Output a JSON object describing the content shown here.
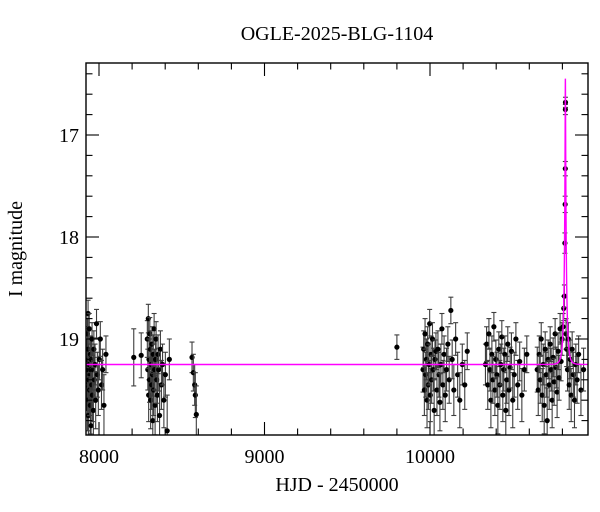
{
  "chart_data": {
    "type": "scatter",
    "title": "OGLE-2025-BLG-1104",
    "xlabel": "HJD - 2450000",
    "ylabel": "I magnitude",
    "xlim": [
      7921.5,
      10954.5
    ],
    "ylim": [
      19.94,
      16.29
    ],
    "y_axis_inverted": true,
    "xticks_major": [
      8000,
      9000,
      10000
    ],
    "xtick_minor_step": 200,
    "yticks_major": [
      17,
      18,
      19
    ],
    "ytick_minor_step": 0.2,
    "grid": false,
    "legend": null,
    "colors": {
      "model_line": "#ff00ff",
      "point": "#000000",
      "errorbar": "#3d3d3d",
      "axis": "#000000"
    },
    "model": {
      "kind": "paczynski",
      "t0": 10818,
      "tE": 15,
      "u0": 0.076,
      "baseline_mag": 19.25,
      "peak_mag": 16.45
    },
    "points": [
      [
        7926,
        19.45,
        0.25
      ],
      [
        7928,
        19.2,
        0.2
      ],
      [
        7930,
        18.95,
        0.15
      ],
      [
        7931,
        19.6,
        0.3
      ],
      [
        7933,
        19.3,
        0.2
      ],
      [
        7934,
        18.75,
        0.13
      ],
      [
        7935,
        19.1,
        0.18
      ],
      [
        7936,
        19.75,
        0.3
      ],
      [
        7938,
        19.4,
        0.22
      ],
      [
        7940,
        19.25,
        0.2
      ],
      [
        7941,
        18.9,
        0.15
      ],
      [
        7943,
        19.5,
        0.25
      ],
      [
        7945,
        19.35,
        0.2
      ],
      [
        7947,
        19.65,
        0.28
      ],
      [
        7948,
        19.15,
        0.18
      ],
      [
        7950,
        19.3,
        0.2
      ],
      [
        7952,
        19.85,
        0.35
      ],
      [
        7954,
        19.2,
        0.2
      ],
      [
        7956,
        19.45,
        0.25
      ],
      [
        7958,
        19.0,
        0.16
      ],
      [
        7960,
        19.55,
        0.26
      ],
      [
        7963,
        19.3,
        0.2
      ],
      [
        7966,
        19.7,
        0.3
      ],
      [
        7969,
        19.1,
        0.18
      ],
      [
        7972,
        19.4,
        0.22
      ],
      [
        7976,
        19.25,
        0.2
      ],
      [
        7980,
        19.6,
        0.28
      ],
      [
        7985,
        18.85,
        0.14
      ],
      [
        7990,
        19.35,
        0.22
      ],
      [
        7996,
        19.5,
        0.25
      ],
      [
        8002,
        19.2,
        0.2
      ],
      [
        8008,
        19.0,
        0.17
      ],
      [
        8015,
        19.45,
        0.24
      ],
      [
        8022,
        19.3,
        0.2
      ],
      [
        8030,
        19.65,
        0.3
      ],
      [
        8042,
        19.15,
        0.18
      ],
      [
        8210,
        19.18,
        0.28
      ],
      [
        8255,
        19.16,
        0.22
      ],
      [
        8292,
        19.0,
        0.18
      ],
      [
        8295,
        19.3,
        0.2
      ],
      [
        8298,
        18.8,
        0.14
      ],
      [
        8300,
        19.55,
        0.26
      ],
      [
        8302,
        19.2,
        0.2
      ],
      [
        8305,
        19.4,
        0.22
      ],
      [
        8307,
        18.95,
        0.16
      ],
      [
        8310,
        19.1,
        0.18
      ],
      [
        8312,
        19.6,
        0.28
      ],
      [
        8315,
        19.25,
        0.2
      ],
      [
        8318,
        19.45,
        0.24
      ],
      [
        8320,
        19.05,
        0.17
      ],
      [
        8323,
        19.35,
        0.21
      ],
      [
        8325,
        19.8,
        0.32
      ],
      [
        8328,
        19.15,
        0.19
      ],
      [
        8330,
        19.5,
        0.25
      ],
      [
        8333,
        18.9,
        0.15
      ],
      [
        8336,
        19.3,
        0.2
      ],
      [
        8339,
        19.65,
        0.29
      ],
      [
        8342,
        19.2,
        0.2
      ],
      [
        8345,
        19.0,
        0.17
      ],
      [
        8349,
        19.4,
        0.23
      ],
      [
        8353,
        19.55,
        0.26
      ],
      [
        8357,
        19.15,
        0.19
      ],
      [
        8361,
        19.3,
        0.21
      ],
      [
        8366,
        19.75,
        0.31
      ],
      [
        8371,
        19.1,
        0.18
      ],
      [
        8377,
        19.45,
        0.24
      ],
      [
        8384,
        19.25,
        0.2
      ],
      [
        8392,
        19.6,
        0.27
      ],
      [
        8401,
        19.35,
        0.22
      ],
      [
        8412,
        19.9,
        0.35
      ],
      [
        8425,
        19.2,
        0.2
      ],
      [
        8562,
        19.18,
        0.15
      ],
      [
        8570,
        19.33,
        0.18
      ],
      [
        8578,
        19.45,
        0.2
      ],
      [
        8582,
        19.55,
        0.22
      ],
      [
        8588,
        19.74,
        0.28
      ],
      [
        9800,
        19.08,
        0.12
      ],
      [
        9958,
        19.3,
        0.22
      ],
      [
        9962,
        19.1,
        0.18
      ],
      [
        9966,
        19.5,
        0.25
      ],
      [
        9970,
        18.95,
        0.15
      ],
      [
        9974,
        19.35,
        0.22
      ],
      [
        9978,
        19.2,
        0.2
      ],
      [
        9982,
        19.6,
        0.27
      ],
      [
        9986,
        19.05,
        0.17
      ],
      [
        9990,
        19.45,
        0.24
      ],
      [
        9994,
        19.25,
        0.2
      ],
      [
        9998,
        18.85,
        0.14
      ],
      [
        10002,
        19.55,
        0.26
      ],
      [
        10006,
        19.15,
        0.18
      ],
      [
        10010,
        19.4,
        0.23
      ],
      [
        10015,
        19.0,
        0.16
      ],
      [
        10020,
        19.3,
        0.21
      ],
      [
        10025,
        19.7,
        0.3
      ],
      [
        10030,
        19.2,
        0.19
      ],
      [
        10036,
        19.12,
        0.18
      ],
      [
        10042,
        19.5,
        0.25
      ],
      [
        10048,
        19.1,
        0.18
      ],
      [
        10054,
        19.35,
        0.22
      ],
      [
        10060,
        19.62,
        0.28
      ],
      [
        10066,
        19.25,
        0.2
      ],
      [
        10072,
        18.9,
        0.15
      ],
      [
        10078,
        19.45,
        0.24
      ],
      [
        10085,
        19.15,
        0.18
      ],
      [
        10092,
        19.55,
        0.26
      ],
      [
        10100,
        19.3,
        0.21
      ],
      [
        10108,
        19.05,
        0.17
      ],
      [
        10116,
        19.4,
        0.23
      ],
      [
        10126,
        18.72,
        0.13
      ],
      [
        10134,
        19.2,
        0.19
      ],
      [
        10144,
        19.5,
        0.25
      ],
      [
        10155,
        19.0,
        0.16
      ],
      [
        10167,
        19.35,
        0.22
      ],
      [
        10180,
        19.6,
        0.27
      ],
      [
        10195,
        19.25,
        0.2
      ],
      [
        10210,
        19.45,
        0.24
      ],
      [
        10225,
        19.12,
        0.18
      ],
      [
        10335,
        19.25,
        0.2
      ],
      [
        10342,
        19.05,
        0.17
      ],
      [
        10349,
        19.45,
        0.24
      ],
      [
        10356,
        18.95,
        0.15
      ],
      [
        10362,
        19.3,
        0.21
      ],
      [
        10368,
        19.6,
        0.27
      ],
      [
        10374,
        19.15,
        0.18
      ],
      [
        10380,
        19.4,
        0.23
      ],
      [
        10386,
        18.88,
        0.14
      ],
      [
        10392,
        19.5,
        0.25
      ],
      [
        10398,
        19.2,
        0.19
      ],
      [
        10404,
        19.35,
        0.22
      ],
      [
        10410,
        19.65,
        0.28
      ],
      [
        10416,
        19.1,
        0.17
      ],
      [
        10422,
        19.45,
        0.24
      ],
      [
        10428,
        19.25,
        0.2
      ],
      [
        10434,
        18.98,
        0.16
      ],
      [
        10440,
        19.55,
        0.26
      ],
      [
        10446,
        19.3,
        0.21
      ],
      [
        10452,
        19.15,
        0.18
      ],
      [
        10458,
        19.7,
        0.3
      ],
      [
        10464,
        19.4,
        0.23
      ],
      [
        10470,
        19.05,
        0.17
      ],
      [
        10477,
        19.5,
        0.25
      ],
      [
        10484,
        19.28,
        0.2
      ],
      [
        10492,
        19.12,
        0.18
      ],
      [
        10500,
        19.6,
        0.27
      ],
      [
        10509,
        19.35,
        0.22
      ],
      [
        10519,
        19.0,
        0.16
      ],
      [
        10530,
        19.45,
        0.24
      ],
      [
        10542,
        19.22,
        0.19
      ],
      [
        10555,
        19.55,
        0.26
      ],
      [
        10570,
        19.3,
        0.21
      ],
      [
        10585,
        19.15,
        0.18
      ],
      [
        10648,
        19.3,
        0.22
      ],
      [
        10654,
        19.5,
        0.25
      ],
      [
        10660,
        19.15,
        0.18
      ],
      [
        10666,
        19.4,
        0.23
      ],
      [
        10672,
        19.0,
        0.16
      ],
      [
        10678,
        19.55,
        0.26
      ],
      [
        10684,
        19.25,
        0.2
      ],
      [
        10690,
        19.65,
        0.28
      ],
      [
        10696,
        19.1,
        0.17
      ],
      [
        10702,
        19.35,
        0.22
      ],
      [
        10708,
        19.8,
        0.32
      ],
      [
        10714,
        19.2,
        0.19
      ],
      [
        10720,
        19.45,
        0.24
      ],
      [
        10726,
        19.05,
        0.17
      ],
      [
        10732,
        19.3,
        0.21
      ],
      [
        10738,
        19.6,
        0.27
      ],
      [
        10744,
        19.18,
        0.19
      ],
      [
        10750,
        19.42,
        0.23
      ],
      [
        10756,
        18.95,
        0.15
      ],
      [
        10762,
        19.28,
        0.2
      ],
      [
        10768,
        19.52,
        0.25
      ],
      [
        10774,
        19.12,
        0.18
      ],
      [
        10780,
        19.38,
        0.22
      ],
      [
        10786,
        18.9,
        0.15
      ],
      [
        10792,
        19.22,
        0.19
      ],
      [
        10798,
        19.0,
        0.16
      ],
      [
        10804,
        18.88,
        0.13
      ],
      [
        10808,
        18.7,
        0.12
      ],
      [
        10812,
        18.58,
        0.11
      ],
      [
        10815,
        18.06,
        0.1
      ],
      [
        10816.5,
        17.68,
        0.08
      ],
      [
        10817.5,
        17.33,
        0.07
      ],
      [
        10818,
        16.75,
        0.05
      ],
      [
        10818.5,
        16.68,
        0.05
      ],
      [
        10822,
        18.95,
        0.15
      ],
      [
        10826,
        19.1,
        0.17
      ],
      [
        10831,
        19.3,
        0.21
      ],
      [
        10836,
        19.0,
        0.16
      ],
      [
        10841,
        19.45,
        0.24
      ],
      [
        10847,
        19.2,
        0.19
      ],
      [
        10853,
        19.55,
        0.26
      ],
      [
        10859,
        19.1,
        0.17
      ],
      [
        10866,
        19.35,
        0.22
      ],
      [
        10873,
        19.6,
        0.27
      ],
      [
        10881,
        19.25,
        0.2
      ],
      [
        10889,
        19.4,
        0.23
      ],
      [
        10898,
        19.15,
        0.18
      ],
      [
        10912,
        19.5,
        0.25
      ],
      [
        10928,
        19.3,
        0.21
      ]
    ]
  }
}
